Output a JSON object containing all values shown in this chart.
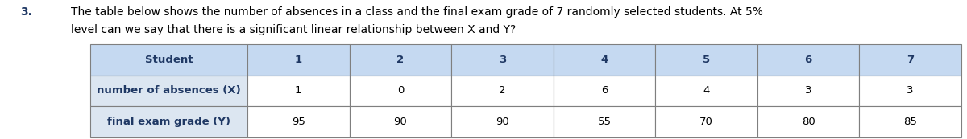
{
  "question_number": "3.",
  "question_text_line1": "The table below shows the number of absences in a class and the final exam grade of 7 randomly selected students. At 5%",
  "question_text_line2": "level can we say that there is a significant linear relationship between X and Y?",
  "header_row_label": "Student",
  "header_row_vals": [
    "1",
    "2",
    "3",
    "4",
    "5",
    "6",
    "7"
  ],
  "row2_label": "number of absences (X)",
  "row2_values": [
    "1",
    "0",
    "2",
    "6",
    "4",
    "3",
    "3"
  ],
  "row3_label": "final exam grade (Y)",
  "row3_values": [
    "95",
    "90",
    "90",
    "55",
    "70",
    "80",
    "85"
  ],
  "header_bg": "#c5d9f1",
  "label_bg": "#dce6f1",
  "cell_bg": "#ffffff",
  "border_color": "#7f7f7f",
  "text_color_dark": "#1f3864",
  "text_color_black": "#000000",
  "font_size_text": 10.0,
  "font_size_table": 9.5,
  "fig_width": 12.0,
  "fig_height": 1.73,
  "dpi": 100
}
